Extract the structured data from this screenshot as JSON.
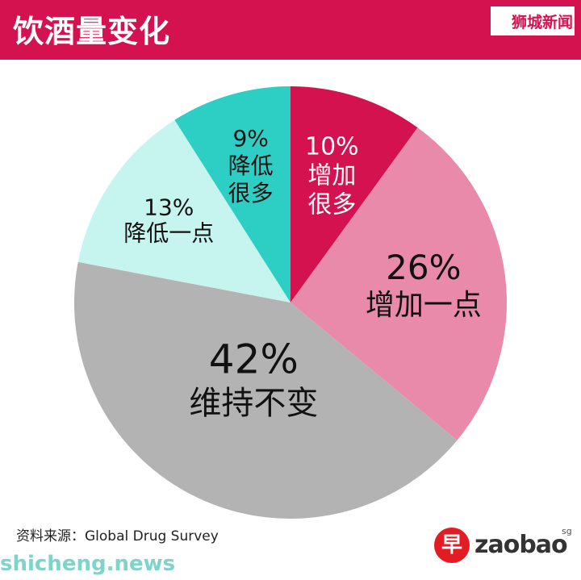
{
  "header": {
    "title": "饮酒量变化",
    "brand": "狮城新闻",
    "background": "#d4124f"
  },
  "chart_data": {
    "type": "pie",
    "title": "饮酒量变化",
    "slices": [
      {
        "label": [
          "增加",
          "很多"
        ],
        "value": 10,
        "display": "10%",
        "color": "#d4124f",
        "text_color": "#ffffff"
      },
      {
        "label": [
          "增加一点"
        ],
        "value": 26,
        "display": "26%",
        "color": "#e98aaa",
        "text_color": "#111111"
      },
      {
        "label": [
          "维持不变"
        ],
        "value": 42,
        "display": "42%",
        "color": "#b3b3b3",
        "text_color": "#111111"
      },
      {
        "label": [
          "降低一点"
        ],
        "value": 13,
        "display": "13%",
        "color": "#c6f5f0",
        "text_color": "#111111"
      },
      {
        "label": [
          "降低",
          "很多"
        ],
        "value": 9,
        "display": "9%",
        "color": "#2dcfc4",
        "text_color": "#111111"
      }
    ],
    "start": "12 o'clock",
    "direction": "clockwise"
  },
  "footer": {
    "source": "资料来源：Global Drug Survey",
    "logo_mark": "早",
    "logo_text": "zaobao",
    "logo_sup": "sg",
    "watermark": "shicheng.news"
  }
}
